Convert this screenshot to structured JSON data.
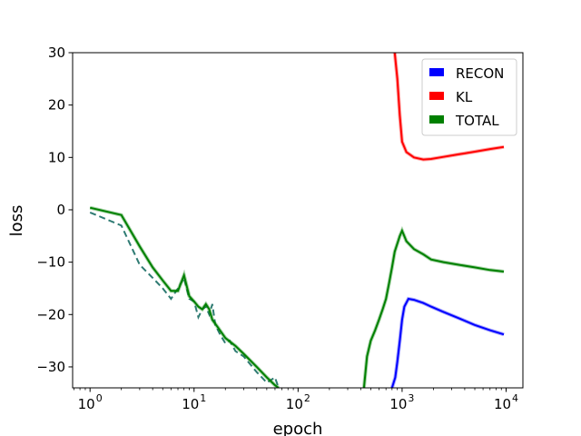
{
  "chart_data": {
    "type": "line",
    "title": "",
    "xlabel": "epoch",
    "ylabel": "loss",
    "xscale": "log",
    "xlim": [
      0.68,
      14500
    ],
    "ylim": [
      -34,
      30
    ],
    "grid": false,
    "legend_placement": "top-right",
    "x_ticks": [
      {
        "value": 1,
        "label": "10",
        "exp": "0"
      },
      {
        "value": 10,
        "label": "10",
        "exp": "1"
      },
      {
        "value": 100,
        "label": "10",
        "exp": "2"
      },
      {
        "value": 1000,
        "label": "10",
        "exp": "3"
      },
      {
        "value": 10000,
        "label": "10",
        "exp": "4"
      }
    ],
    "y_ticks": [
      -30,
      -20,
      -10,
      0,
      10,
      20,
      30
    ],
    "legend": [
      {
        "label": "RECON",
        "color": "#0000ff"
      },
      {
        "label": "KL",
        "color": "#ff0000"
      },
      {
        "label": "TOTAL",
        "color": "#008000"
      }
    ],
    "series": [
      {
        "name": "RECON",
        "color": "#0000ff",
        "points": [
          [
            800,
            -34
          ],
          [
            860,
            -32
          ],
          [
            900,
            -29
          ],
          [
            950,
            -25
          ],
          [
            1000,
            -21
          ],
          [
            1050,
            -18.5
          ],
          [
            1150,
            -17
          ],
          [
            1300,
            -17.2
          ],
          [
            1600,
            -17.8
          ],
          [
            1900,
            -18.5
          ],
          [
            2500,
            -19.5
          ],
          [
            3500,
            -20.7
          ],
          [
            5000,
            -22
          ],
          [
            7000,
            -23
          ],
          [
            9500,
            -23.8
          ]
        ]
      },
      {
        "name": "KL",
        "color": "#ff0000",
        "points": [
          [
            850,
            30
          ],
          [
            900,
            25
          ],
          [
            950,
            18
          ],
          [
            1000,
            13
          ],
          [
            1100,
            11
          ],
          [
            1300,
            10
          ],
          [
            1600,
            9.6
          ],
          [
            1900,
            9.7
          ],
          [
            2500,
            10.1
          ],
          [
            3500,
            10.6
          ],
          [
            5000,
            11.1
          ],
          [
            7000,
            11.6
          ],
          [
            9500,
            12
          ]
        ]
      },
      {
        "name": "TOTAL",
        "color": "#008000",
        "points": [
          [
            1,
            0.4
          ],
          [
            2,
            -1
          ],
          [
            3,
            -7
          ],
          [
            4,
            -11
          ],
          [
            5,
            -13.5
          ],
          [
            6,
            -15.5
          ],
          [
            7,
            -15.5
          ],
          [
            8,
            -12.5
          ],
          [
            9,
            -16.5
          ],
          [
            10,
            -17.5
          ],
          [
            11,
            -18.5
          ],
          [
            12,
            -19
          ],
          [
            13,
            -18
          ],
          [
            14,
            -19
          ],
          [
            15,
            -21
          ],
          [
            17,
            -22.5
          ],
          [
            20,
            -24.5
          ],
          [
            25,
            -26
          ],
          [
            30,
            -27.5
          ],
          [
            40,
            -30
          ],
          [
            50,
            -32
          ],
          [
            60,
            -33.5
          ],
          [
            65,
            -34
          ]
        ],
        "points_b": [
          [
            430,
            -34
          ],
          [
            460,
            -28
          ],
          [
            500,
            -25
          ],
          [
            550,
            -23
          ],
          [
            600,
            -21
          ],
          [
            650,
            -19
          ],
          [
            700,
            -17
          ],
          [
            750,
            -14
          ],
          [
            800,
            -11
          ],
          [
            850,
            -8
          ],
          [
            950,
            -5
          ],
          [
            1000,
            -4
          ],
          [
            1100,
            -6
          ],
          [
            1300,
            -7.5
          ],
          [
            1600,
            -8.5
          ],
          [
            1900,
            -9.5
          ],
          [
            2500,
            -10
          ],
          [
            3500,
            -10.5
          ],
          [
            5000,
            -11
          ],
          [
            7000,
            -11.5
          ],
          [
            9500,
            -11.8
          ]
        ]
      }
    ],
    "extra_series": [
      {
        "color": "#2f7b73",
        "style": "dashed",
        "points": [
          [
            1,
            -0.5
          ],
          [
            2,
            -3
          ],
          [
            3,
            -10.5
          ],
          [
            4,
            -13
          ],
          [
            5,
            -15
          ],
          [
            6,
            -17
          ],
          [
            7,
            -15
          ],
          [
            8,
            -13
          ],
          [
            9,
            -17
          ],
          [
            10,
            -17.5
          ],
          [
            11,
            -20.5
          ],
          [
            12,
            -19
          ],
          [
            13,
            -18.5
          ],
          [
            14,
            -20
          ],
          [
            15,
            -18
          ],
          [
            16,
            -22
          ],
          [
            18,
            -24
          ],
          [
            20,
            -25.5
          ],
          [
            22,
            -25
          ],
          [
            25,
            -27
          ],
          [
            30,
            -28
          ],
          [
            40,
            -31
          ],
          [
            50,
            -33
          ],
          [
            60,
            -32
          ],
          [
            65,
            -34
          ]
        ]
      }
    ]
  }
}
